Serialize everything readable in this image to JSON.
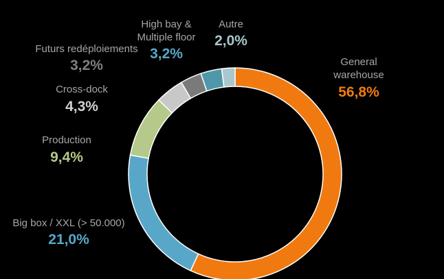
{
  "chart_data": {
    "type": "pie",
    "variant": "donut",
    "title": "",
    "slices": [
      {
        "label": "General warehouse",
        "value_label": "56,8%",
        "value": 56.8,
        "color": "#f07a10"
      },
      {
        "label": "Big box / XXL (> 50.000)",
        "value_label": "21,0%",
        "value": 21.0,
        "color": "#58a7c9"
      },
      {
        "label": "Production",
        "value_label": "9,4%",
        "value": 9.4,
        "color": "#b4c98a"
      },
      {
        "label": "Cross-dock",
        "value_label": "4,3%",
        "value": 4.3,
        "color": "#c8c8c8"
      },
      {
        "label": "Futurs redéploiements",
        "value_label": "3,2%",
        "value": 3.2,
        "color": "#7a7a7a"
      },
      {
        "label": "High bay & Multiple floor",
        "value_label": "3,2%",
        "value": 3.2,
        "color": "#4f98aa"
      },
      {
        "label": "Autre",
        "value_label": "2,0%",
        "value": 2.0,
        "color": "#a9c7cc"
      }
    ],
    "start_angle_deg": 0,
    "direction": "clockwise",
    "label_name_color": "#a6a6a6",
    "label_value_colors": {
      "General warehouse": "#f07a10",
      "Big box / XXL (> 50.000)": "#58a7c9",
      "Production": "#b4c98a",
      "Cross-dock": "#d0d0d0",
      "Futurs redéploiements": "#7f7f7f",
      "High bay & Multiple floor": "#58a7c9",
      "Autre": "#a9c7cc"
    }
  }
}
